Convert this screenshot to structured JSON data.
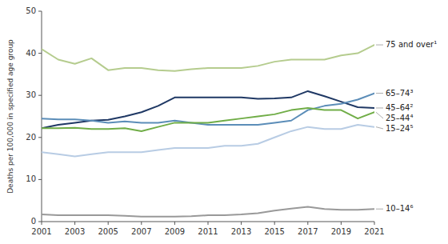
{
  "chart_data": {
    "type": "line",
    "ylabel": "Deaths per 100,000 in specified age group",
    "x": [
      2001,
      2002,
      2003,
      2004,
      2005,
      2006,
      2007,
      2008,
      2009,
      2010,
      2011,
      2012,
      2013,
      2014,
      2015,
      2016,
      2017,
      2018,
      2019,
      2020,
      2021
    ],
    "series": [
      {
        "name": "75 and over¹",
        "color": "#b5cc8e",
        "values": [
          41.0,
          38.5,
          37.5,
          38.8,
          36.0,
          36.5,
          36.5,
          36.0,
          35.8,
          36.2,
          36.5,
          36.5,
          36.5,
          37.0,
          38.0,
          38.5,
          38.5,
          38.5,
          39.5,
          40.0,
          42.0
        ]
      },
      {
        "name": "45–64²",
        "color": "#1f3864",
        "values": [
          22.2,
          23.0,
          23.5,
          24.0,
          24.2,
          25.0,
          26.0,
          27.5,
          29.5,
          29.5,
          29.5,
          29.5,
          29.5,
          29.2,
          29.3,
          29.5,
          31.0,
          29.8,
          28.5,
          27.2,
          27.0
        ]
      },
      {
        "name": "65–74³",
        "color": "#5b8db8",
        "values": [
          24.5,
          24.3,
          24.3,
          24.0,
          23.5,
          23.8,
          23.5,
          23.5,
          24.0,
          23.5,
          23.0,
          23.0,
          23.0,
          23.0,
          23.5,
          24.0,
          26.5,
          27.5,
          28.0,
          29.0,
          30.5
        ]
      },
      {
        "name": "25–44⁴",
        "color": "#70ad47",
        "values": [
          22.2,
          22.2,
          22.3,
          22.0,
          22.0,
          22.2,
          21.5,
          22.5,
          23.5,
          23.5,
          23.5,
          24.0,
          24.5,
          25.0,
          25.5,
          26.5,
          27.0,
          26.5,
          26.5,
          24.5,
          26.0
        ]
      },
      {
        "name": "15–24⁵",
        "color": "#b8cce4",
        "values": [
          16.5,
          16.0,
          15.5,
          16.0,
          16.5,
          16.5,
          16.5,
          17.0,
          17.5,
          17.5,
          17.5,
          18.0,
          18.0,
          18.5,
          20.0,
          21.5,
          22.5,
          22.0,
          22.0,
          23.0,
          22.5
        ]
      },
      {
        "name": "10–14⁶",
        "color": "#999999",
        "values": [
          1.7,
          1.5,
          1.5,
          1.5,
          1.5,
          1.4,
          1.2,
          1.2,
          1.2,
          1.3,
          1.5,
          1.5,
          1.7,
          2.0,
          2.6,
          3.1,
          3.5,
          3.0,
          2.8,
          2.8,
          3.0
        ]
      }
    ],
    "xlim": [
      2001,
      2021
    ],
    "xticks": [
      2001,
      2003,
      2005,
      2007,
      2009,
      2011,
      2013,
      2015,
      2017,
      2019,
      2021
    ],
    "ylim": [
      0,
      50
    ],
    "yticks": [
      0,
      10,
      20,
      30,
      40,
      50
    ],
    "grid": false
  }
}
